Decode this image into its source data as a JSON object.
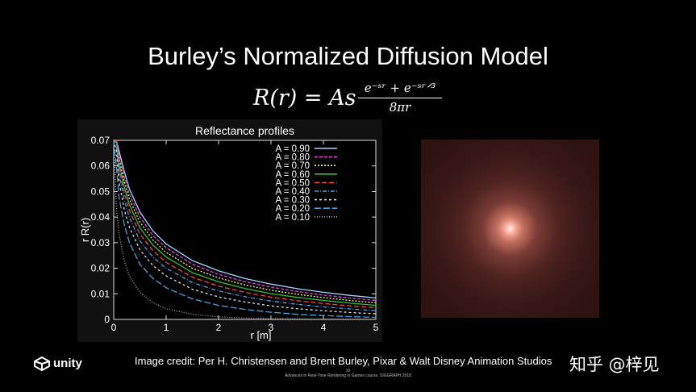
{
  "slide": {
    "title": "Burley’s Normalized Diffusion Model",
    "formula": {
      "lhs": "R(r) = As",
      "numerator": "e⁻ˢʳ + e⁻ˢʳᐟ³",
      "denominator": "8πr"
    },
    "credit": "Image credit: Per H. Christensen and Brent Burley, Pixar & Walt Disney Animation Studios",
    "footer_page": "10",
    "footer_course": "Advances in Real-Time Rendering in Games course, SIGGRAPH 2018",
    "logo_text": "unity",
    "watermark": "知乎 @梓见"
  },
  "colors": {
    "background": "#000000",
    "plot_background": "#000000",
    "render_center": "#ffd0c0",
    "render_edge": "#2f1311"
  },
  "chart_data": {
    "type": "line",
    "title": "Reflectance profiles",
    "xlabel": "r  [m]",
    "ylabel": "r R(r)",
    "xlim": [
      0,
      5
    ],
    "ylim": [
      0,
      0.07
    ],
    "xticks": [
      "0",
      "1",
      "2",
      "3",
      "4",
      "5"
    ],
    "yticks": [
      "0",
      "0.01",
      "0.02",
      "0.03",
      "0.04",
      "0.05",
      "0.06",
      "0.07"
    ],
    "grid": false,
    "legend_position": "top-right",
    "x": [
      0.05,
      0.1,
      0.2,
      0.3,
      0.5,
      0.75,
      1,
      1.5,
      2,
      2.5,
      3,
      3.5,
      4,
      4.5,
      5
    ],
    "series": [
      {
        "name": "A = 0.90",
        "color": "#9fd8ff",
        "dash": "",
        "values": [
          0.07,
          0.066,
          0.058,
          0.051,
          0.042,
          0.0345,
          0.0295,
          0.023,
          0.019,
          0.016,
          0.0138,
          0.012,
          0.0106,
          0.0094,
          0.0084
        ]
      },
      {
        "name": "A = 0.80",
        "color": "#e040e0",
        "dash": "4,2",
        "values": [
          0.07,
          0.0645,
          0.056,
          0.049,
          0.04,
          0.0327,
          0.028,
          0.0216,
          0.0176,
          0.0148,
          0.0126,
          0.0109,
          0.0095,
          0.0084,
          0.0074
        ]
      },
      {
        "name": "A = 0.70",
        "color": "#f0f080",
        "dash": "2,2",
        "values": [
          0.07,
          0.063,
          0.054,
          0.047,
          0.038,
          0.031,
          0.0262,
          0.02,
          0.0162,
          0.0135,
          0.0114,
          0.0098,
          0.0085,
          0.0074,
          0.0065
        ]
      },
      {
        "name": "A = 0.60",
        "color": "#30c030",
        "dash": "",
        "values": [
          0.07,
          0.0612,
          0.0518,
          0.0448,
          0.0358,
          0.029,
          0.0244,
          0.0183,
          0.0147,
          0.0121,
          0.0101,
          0.0086,
          0.0074,
          0.0064,
          0.0055
        ]
      },
      {
        "name": "A = 0.50",
        "color": "#ff4040",
        "dash": "6,3",
        "values": [
          0.07,
          0.0595,
          0.0495,
          0.0425,
          0.0334,
          0.0268,
          0.0223,
          0.0165,
          0.013,
          0.0106,
          0.0087,
          0.0073,
          0.0062,
          0.0053,
          0.0045
        ]
      },
      {
        "name": "A = 0.40",
        "color": "#4aa0e8",
        "dash": "5,2,1,2",
        "values": [
          0.069,
          0.057,
          0.0468,
          0.0398,
          0.0307,
          0.0243,
          0.02,
          0.0144,
          0.0111,
          0.0089,
          0.0072,
          0.0059,
          0.0049,
          0.0041,
          0.0034
        ]
      },
      {
        "name": "A = 0.30",
        "color": "#e0e0e0",
        "dash": "3,3",
        "values": [
          0.066,
          0.054,
          0.043,
          0.036,
          0.0272,
          0.021,
          0.017,
          0.0118,
          0.0088,
          0.0068,
          0.0053,
          0.0042,
          0.0034,
          0.0027,
          0.0022
        ]
      },
      {
        "name": "A = 0.20",
        "color": "#3aa8e0",
        "dash": "8,3",
        "values": [
          0.06,
          0.048,
          0.0372,
          0.03,
          0.0215,
          0.016,
          0.0124,
          0.008,
          0.0055,
          0.0039,
          0.0028,
          0.002,
          0.0015,
          0.0011,
          0.0008
        ]
      },
      {
        "name": "A = 0.10",
        "color": "#b0b0b0",
        "dash": "1,2",
        "values": [
          0.044,
          0.0335,
          0.023,
          0.017,
          0.0105,
          0.0065,
          0.0042,
          0.002,
          0.001,
          0.0005,
          0.0003,
          0.0002,
          0.0001,
          0.0001,
          0.0
        ]
      }
    ]
  }
}
